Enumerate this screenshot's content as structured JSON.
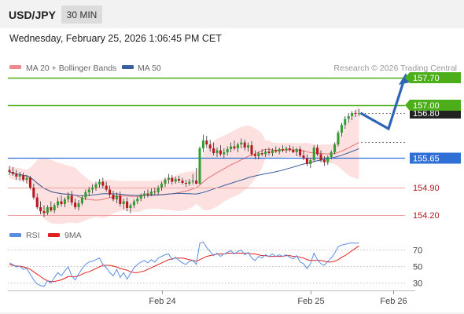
{
  "header": {
    "symbol": "USD/JPY",
    "timeframe": "30 MIN",
    "datetime": "Wednesday, February 25, 2026 1:06:45 PM CET"
  },
  "legend": {
    "items": [
      {
        "label": "MA 20 + Bollinger Bands",
        "color": "#f08a8a"
      },
      {
        "label": "MA 50",
        "color": "#3a5f9e"
      }
    ],
    "copyright": "Research © 2026 Trading Central"
  },
  "colors": {
    "bullish": "#2e9e2e",
    "bearish": "#b8171d",
    "bollinger_fill": "#fde0e0",
    "ma20": "#e67373",
    "ma50": "#3a5f9e",
    "target_line": "#4caf1a",
    "pivot_line": "#2f6fd6",
    "support_line": "#f0a0a0",
    "arrow": "#2d66b4",
    "rsi": "#5a8de0",
    "rsi_ma": "#e02020",
    "last_price_bg": "#222222"
  },
  "chart_data": [
    {
      "type": "candlestick",
      "title": "USD/JPY 30 MIN",
      "price_range": [
        153.9,
        158.1
      ],
      "last_price": "156.80",
      "levels": [
        {
          "label": "157.70",
          "value": 157.7,
          "kind": "target"
        },
        {
          "label": "157.00",
          "value": 157.0,
          "kind": "target"
        },
        {
          "label": "155.65",
          "value": 155.65,
          "kind": "pivot"
        },
        {
          "label": "154.90",
          "value": 154.9,
          "kind": "support"
        },
        {
          "label": "154.20",
          "value": 154.2,
          "kind": "support"
        }
      ],
      "x_ticks": [
        {
          "label": "Feb 24",
          "index": 44
        },
        {
          "label": "Feb 25",
          "index": 87
        },
        {
          "label": "Feb 26",
          "index": 111
        }
      ],
      "candles": [
        [
          155.35,
          155.45,
          155.22,
          155.3
        ],
        [
          155.3,
          155.42,
          155.2,
          155.25
        ],
        [
          155.25,
          155.35,
          155.1,
          155.18
        ],
        [
          155.18,
          155.3,
          155.08,
          155.22
        ],
        [
          155.22,
          155.28,
          155.05,
          155.1
        ],
        [
          155.1,
          155.22,
          155.0,
          155.15
        ],
        [
          155.15,
          155.2,
          154.85,
          154.9
        ],
        [
          154.9,
          155.0,
          154.6,
          154.65
        ],
        [
          154.65,
          154.75,
          154.35,
          154.4
        ],
        [
          154.4,
          154.55,
          154.22,
          154.3
        ],
        [
          154.3,
          154.45,
          154.15,
          154.25
        ],
        [
          154.25,
          154.45,
          154.2,
          154.4
        ],
        [
          154.4,
          154.55,
          154.28,
          154.32
        ],
        [
          154.32,
          154.5,
          154.25,
          154.45
        ],
        [
          154.45,
          154.65,
          154.38,
          154.55
        ],
        [
          154.55,
          154.7,
          154.42,
          154.48
        ],
        [
          154.48,
          154.65,
          154.4,
          154.6
        ],
        [
          154.6,
          154.78,
          154.52,
          154.7
        ],
        [
          154.7,
          154.82,
          154.45,
          154.52
        ],
        [
          154.52,
          154.62,
          154.35,
          154.4
        ],
        [
          154.4,
          154.58,
          154.32,
          154.5
        ],
        [
          154.5,
          154.7,
          154.45,
          154.65
        ],
        [
          154.65,
          154.85,
          154.58,
          154.78
        ],
        [
          154.78,
          154.92,
          154.68,
          154.85
        ],
        [
          154.85,
          154.98,
          154.75,
          154.9
        ],
        [
          154.9,
          155.05,
          154.82,
          154.98
        ],
        [
          154.98,
          155.12,
          154.9,
          155.05
        ],
        [
          155.05,
          155.15,
          154.88,
          154.95
        ],
        [
          154.95,
          155.05,
          154.8,
          154.85
        ],
        [
          154.85,
          154.95,
          154.65,
          154.72
        ],
        [
          154.72,
          154.82,
          154.55,
          154.6
        ],
        [
          154.6,
          154.78,
          154.5,
          154.7
        ],
        [
          154.7,
          154.8,
          154.42,
          154.48
        ],
        [
          154.48,
          154.62,
          154.35,
          154.55
        ],
        [
          154.55,
          154.65,
          154.3,
          154.38
        ],
        [
          154.38,
          154.5,
          154.25,
          154.45
        ],
        [
          154.45,
          154.6,
          154.38,
          154.55
        ],
        [
          154.55,
          154.68,
          154.48,
          154.62
        ],
        [
          154.62,
          154.75,
          154.55,
          154.7
        ],
        [
          154.7,
          154.82,
          154.62,
          154.75
        ],
        [
          154.75,
          154.85,
          154.65,
          154.72
        ],
        [
          154.72,
          154.88,
          154.68,
          154.8
        ],
        [
          154.8,
          154.9,
          154.72,
          154.78
        ],
        [
          154.78,
          154.95,
          154.72,
          154.9
        ],
        [
          154.9,
          155.05,
          154.82,
          155.0
        ],
        [
          155.0,
          155.15,
          154.92,
          155.1
        ],
        [
          155.1,
          155.25,
          155.0,
          155.15
        ],
        [
          155.15,
          155.22,
          154.98,
          155.05
        ],
        [
          155.05,
          155.18,
          155.0,
          155.12
        ],
        [
          155.12,
          155.2,
          155.02,
          155.08
        ],
        [
          155.08,
          155.15,
          154.98,
          155.02
        ],
        [
          155.02,
          155.1,
          154.92,
          155.0
        ],
        [
          155.0,
          155.12,
          154.95,
          155.05
        ],
        [
          155.05,
          155.25,
          154.98,
          155.08
        ],
        [
          155.08,
          155.4,
          154.98,
          155.0
        ],
        [
          155.0,
          155.95,
          154.98,
          155.9
        ],
        [
          155.9,
          156.25,
          155.8,
          156.1
        ],
        [
          156.1,
          156.22,
          155.92,
          156.0
        ],
        [
          156.0,
          156.12,
          155.82,
          155.9
        ],
        [
          155.9,
          156.05,
          155.72,
          155.78
        ],
        [
          155.78,
          155.92,
          155.68,
          155.85
        ],
        [
          155.85,
          155.98,
          155.7,
          155.75
        ],
        [
          155.75,
          155.9,
          155.65,
          155.8
        ],
        [
          155.8,
          155.95,
          155.72,
          155.88
        ],
        [
          155.88,
          156.05,
          155.8,
          155.95
        ],
        [
          155.95,
          156.1,
          155.85,
          155.9
        ],
        [
          155.9,
          156.05,
          155.8,
          156.0
        ],
        [
          156.0,
          156.15,
          155.9,
          156.05
        ],
        [
          156.05,
          156.12,
          155.85,
          155.92
        ],
        [
          155.92,
          156.05,
          155.82,
          155.98
        ],
        [
          155.98,
          156.08,
          155.7,
          155.75
        ],
        [
          155.75,
          155.85,
          155.62,
          155.7
        ],
        [
          155.7,
          155.82,
          155.62,
          155.78
        ],
        [
          155.78,
          155.88,
          155.7,
          155.75
        ],
        [
          155.75,
          155.88,
          155.68,
          155.82
        ],
        [
          155.82,
          155.92,
          155.72,
          155.78
        ],
        [
          155.78,
          155.9,
          155.7,
          155.85
        ],
        [
          155.85,
          155.95,
          155.78,
          155.82
        ],
        [
          155.82,
          155.92,
          155.75,
          155.88
        ],
        [
          155.88,
          155.98,
          155.8,
          155.85
        ],
        [
          155.85,
          155.95,
          155.78,
          155.9
        ],
        [
          155.9,
          155.98,
          155.82,
          155.86
        ],
        [
          155.86,
          155.95,
          155.78,
          155.8
        ],
        [
          155.8,
          155.92,
          155.7,
          155.88
        ],
        [
          155.88,
          155.95,
          155.68,
          155.72
        ],
        [
          155.72,
          155.85,
          155.6,
          155.65
        ],
        [
          155.65,
          155.75,
          155.45,
          155.5
        ],
        [
          155.5,
          155.65,
          155.4,
          155.6
        ],
        [
          155.6,
          155.98,
          155.55,
          155.92
        ],
        [
          155.92,
          156.0,
          155.7,
          155.75
        ],
        [
          155.75,
          155.85,
          155.55,
          155.6
        ],
        [
          155.6,
          155.7,
          155.45,
          155.55
        ],
        [
          155.55,
          155.72,
          155.48,
          155.68
        ],
        [
          155.68,
          155.85,
          155.62,
          155.8
        ],
        [
          155.8,
          156.05,
          155.75,
          156.0
        ],
        [
          156.0,
          156.35,
          155.95,
          156.3
        ],
        [
          156.3,
          156.55,
          156.2,
          156.5
        ],
        [
          156.5,
          156.72,
          156.4,
          156.65
        ],
        [
          156.65,
          156.8,
          156.55,
          156.72
        ],
        [
          156.72,
          156.85,
          156.62,
          156.8
        ],
        [
          156.8,
          156.88,
          156.7,
          156.78
        ],
        [
          156.78,
          156.9,
          156.72,
          156.8
        ]
      ],
      "arrow_path": [
        156.8,
        156.4,
        157.7
      ]
    },
    {
      "type": "line",
      "title": "RSI",
      "series": [
        {
          "name": "RSI"
        },
        {
          "name": "9MA"
        }
      ],
      "y_ticks": [
        70,
        50,
        30
      ],
      "ylim": [
        18,
        82
      ],
      "rsi": [
        54,
        52,
        49,
        50,
        46,
        47,
        40,
        33,
        28,
        26,
        25,
        32,
        29,
        36,
        42,
        38,
        44,
        49,
        38,
        33,
        40,
        47,
        52,
        55,
        56,
        58,
        60,
        52,
        48,
        42,
        38,
        46,
        36,
        42,
        34,
        41,
        48,
        52,
        55,
        57,
        54,
        58,
        55,
        60,
        62,
        64,
        65,
        58,
        61,
        57,
        54,
        52,
        56,
        57,
        52,
        78,
        80,
        73,
        68,
        63,
        66,
        62,
        65,
        67,
        69,
        65,
        68,
        70,
        64,
        67,
        60,
        57,
        62,
        60,
        64,
        62,
        65,
        62,
        64,
        62,
        64,
        61,
        59,
        63,
        55,
        53,
        47,
        53,
        66,
        58,
        53,
        51,
        56,
        60,
        66,
        74,
        76,
        77,
        78,
        79,
        78,
        79
      ],
      "rsi_ma": [
        52,
        51,
        50,
        50,
        49,
        48,
        46,
        43,
        40,
        37,
        34,
        32,
        31,
        31,
        32,
        33,
        35,
        37,
        37,
        37,
        38,
        40,
        42,
        43,
        45,
        47,
        49,
        51,
        51,
        51,
        50,
        49,
        47,
        46,
        45,
        43,
        42,
        42,
        43,
        44,
        46,
        48,
        50,
        52,
        54,
        56,
        58,
        59,
        60,
        60,
        60,
        59,
        58,
        57,
        56,
        58,
        60,
        62,
        63,
        64,
        65,
        65,
        65,
        66,
        66,
        66,
        66,
        66,
        66,
        66,
        65,
        65,
        64,
        63,
        63,
        62,
        62,
        62,
        62,
        62,
        63,
        63,
        62,
        62,
        61,
        60,
        58,
        57,
        57,
        57,
        57,
        56,
        55,
        55,
        56,
        58,
        61,
        63,
        66,
        69,
        72,
        75
      ]
    }
  ]
}
